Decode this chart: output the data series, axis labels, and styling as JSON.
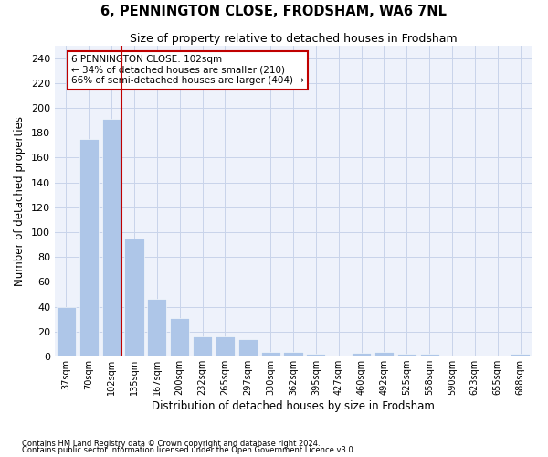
{
  "title": "6, PENNINGTON CLOSE, FRODSHAM, WA6 7NL",
  "subtitle": "Size of property relative to detached houses in Frodsham",
  "xlabel": "Distribution of detached houses by size in Frodsham",
  "ylabel": "Number of detached properties",
  "bar_labels": [
    "37sqm",
    "70sqm",
    "102sqm",
    "135sqm",
    "167sqm",
    "200sqm",
    "232sqm",
    "265sqm",
    "297sqm",
    "330sqm",
    "362sqm",
    "395sqm",
    "427sqm",
    "460sqm",
    "492sqm",
    "525sqm",
    "558sqm",
    "590sqm",
    "623sqm",
    "655sqm",
    "688sqm"
  ],
  "bar_values": [
    40,
    175,
    191,
    95,
    46,
    31,
    16,
    16,
    14,
    4,
    4,
    2,
    0,
    3,
    4,
    2,
    2,
    0,
    0,
    0,
    2
  ],
  "bar_color": "#aec6e8",
  "highlight_bar_index": 2,
  "highlight_color": "#c00000",
  "annotation_lines": [
    "6 PENNINGTON CLOSE: 102sqm",
    "← 34% of detached houses are smaller (210)",
    "66% of semi-detached houses are larger (404) →"
  ],
  "ylim": [
    0,
    250
  ],
  "yticks": [
    0,
    20,
    40,
    60,
    80,
    100,
    120,
    140,
    160,
    180,
    200,
    220,
    240
  ],
  "footer_line1": "Contains HM Land Registry data © Crown copyright and database right 2024.",
  "footer_line2": "Contains public sector information licensed under the Open Government Licence v3.0.",
  "bg_color": "#eef2fb",
  "grid_color": "#c8d4ea"
}
